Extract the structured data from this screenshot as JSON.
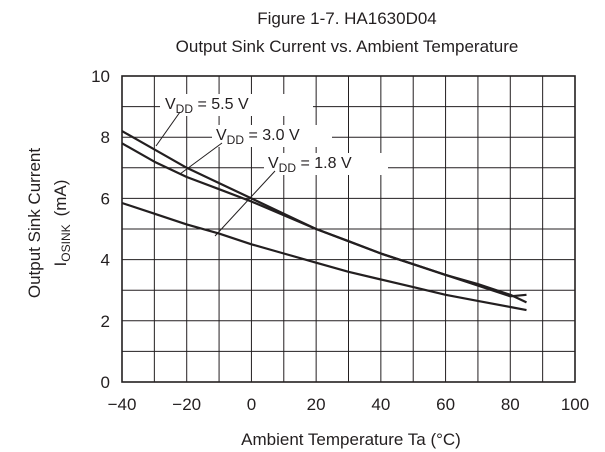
{
  "chart_data": {
    "type": "line",
    "title": "Figure 1-7. HA1630D04",
    "subtitle": "Output Sink Current vs. Ambient Temperature",
    "xlabel": "Ambient Temperature  Ta  (°C)",
    "ylabel": {
      "main": "Output Sink Current",
      "symbol": "I",
      "subscript": "OSINK",
      "unit": "(mA)"
    },
    "xlim": [
      -40,
      100
    ],
    "ylim": [
      0,
      10
    ],
    "x_ticks": [
      "−40",
      "−20",
      "0",
      "20",
      "40",
      "60",
      "80",
      "100"
    ],
    "y_ticks": [
      "0",
      "2",
      "4",
      "6",
      "8",
      "10"
    ],
    "grid": true,
    "series": [
      {
        "name": "V_DD = 5.5 V",
        "label": {
          "prefix": "V",
          "sub": "DD",
          "suffix": " = 5.5 V"
        },
        "x": [
          -40,
          -30,
          -20,
          -10,
          0,
          10,
          20,
          30,
          40,
          50,
          60,
          70,
          80,
          85
        ],
        "y": [
          8.2,
          7.6,
          7.0,
          6.5,
          6.0,
          5.5,
          5.0,
          4.6,
          4.2,
          3.85,
          3.5,
          3.2,
          2.85,
          2.6
        ]
      },
      {
        "name": "V_DD = 3.0 V",
        "label": {
          "prefix": "V",
          "sub": "DD",
          "suffix": " = 3.0 V"
        },
        "x": [
          -40,
          -30,
          -20,
          -10,
          0,
          10,
          20,
          30,
          40,
          50,
          60,
          70,
          80,
          85
        ],
        "y": [
          7.8,
          7.2,
          6.7,
          6.3,
          5.9,
          5.45,
          5.0,
          4.6,
          4.2,
          3.85,
          3.5,
          3.15,
          2.8,
          2.85
        ]
      },
      {
        "name": "V_DD = 1.8 V",
        "label": {
          "prefix": "V",
          "sub": "DD",
          "suffix": " = 1.8 V"
        },
        "x": [
          -40,
          -30,
          -20,
          -10,
          0,
          10,
          20,
          30,
          40,
          50,
          60,
          70,
          80,
          85
        ],
        "y": [
          5.85,
          5.5,
          5.15,
          4.85,
          4.5,
          4.2,
          3.9,
          3.6,
          3.35,
          3.1,
          2.85,
          2.65,
          2.45,
          2.35
        ]
      }
    ]
  }
}
